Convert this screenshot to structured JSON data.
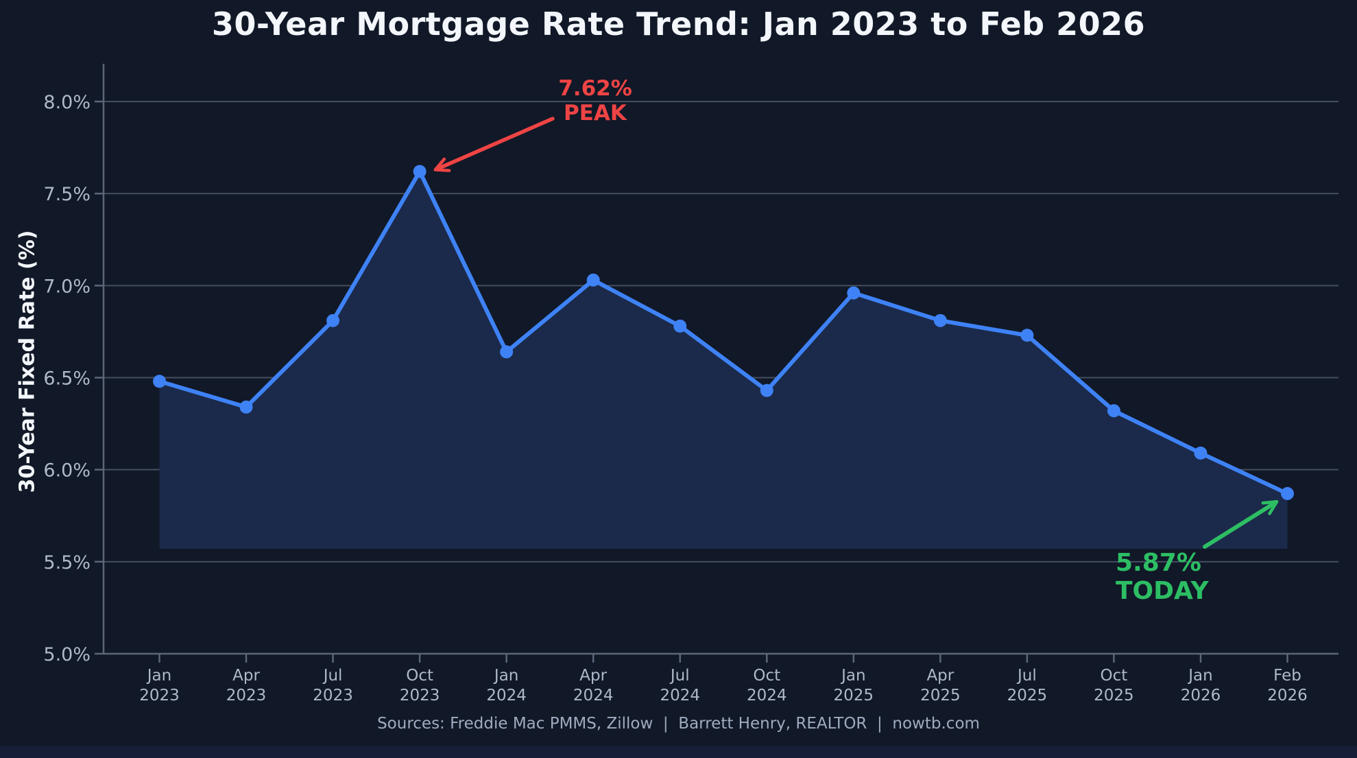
{
  "title": "30-Year Mortgage Rate Trend: Jan 2023 to Feb 2026",
  "footer": "Sources: Freddie Mac PMMS, Zillow  |  Barrett Henry, REALTOR  |  nowtb.com",
  "colors": {
    "background": "#111827",
    "line": "#3e82f6",
    "area_fill": "#1b2a4a",
    "grid": "#454f61",
    "spine": "#5c6679",
    "tick_text": "#aeb9ca",
    "title_text": "#f3f6fa",
    "footer_text": "#9fabbf",
    "peak_accent": "#ef4444",
    "today_accent": "#2dbe64"
  },
  "chart_data": {
    "type": "line",
    "title": "30-Year Mortgage Rate Trend: Jan 2023 to Feb 2026",
    "xlabel": "",
    "ylabel": "30-Year Fixed Rate (%)",
    "categories": [
      "Jan 2023",
      "Apr 2023",
      "Jul 2023",
      "Oct 2023",
      "Jan 2024",
      "Apr 2024",
      "Jul 2024",
      "Oct 2024",
      "Jan 2025",
      "Apr 2025",
      "Jul 2025",
      "Oct 2025",
      "Jan 2026",
      "Feb 2026"
    ],
    "values": [
      6.48,
      6.34,
      6.81,
      7.62,
      6.64,
      7.03,
      6.78,
      6.43,
      6.96,
      6.81,
      6.73,
      6.32,
      6.09,
      5.87
    ],
    "yticks": [
      5.0,
      5.5,
      6.0,
      6.5,
      7.0,
      7.5,
      8.0
    ],
    "ytick_labels": [
      "5.0%",
      "5.5%",
      "6.0%",
      "6.5%",
      "7.0%",
      "7.5%",
      "8.0%"
    ],
    "ylim": [
      5.0,
      8.2
    ],
    "grid": true,
    "legend": "none",
    "area_fill_baseline": 5.57,
    "annotations": [
      {
        "text": [
          "7.62%",
          "PEAK"
        ],
        "color": "#ef4444",
        "target": "Oct 2023"
      },
      {
        "text": [
          "5.87%",
          "TODAY"
        ],
        "color": "#2dbe64",
        "target": "Feb 2026"
      }
    ]
  }
}
